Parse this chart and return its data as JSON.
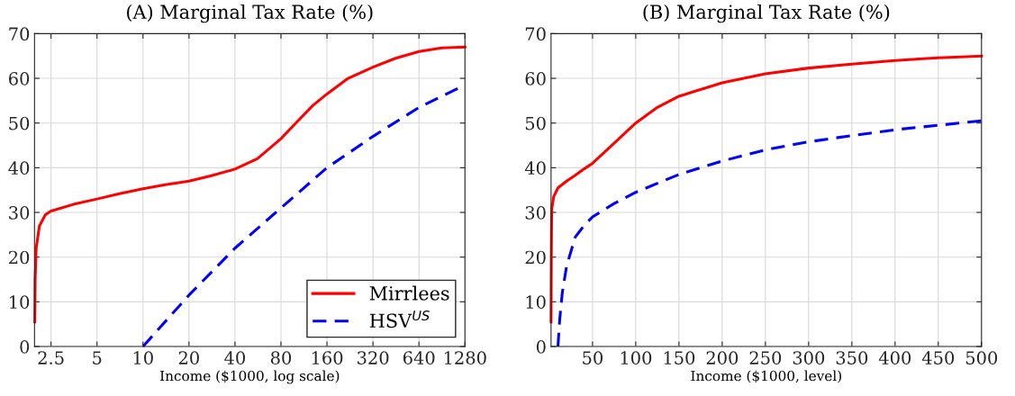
{
  "chart_data": [
    {
      "type": "line",
      "title": "(A) Marginal Tax Rate (%)",
      "xlabel": "Income ($1000, log scale)",
      "log": "x",
      "xlim": [
        1.95,
        1280
      ],
      "xticks": [
        2.5,
        5,
        10,
        20,
        40,
        80,
        160,
        320,
        640,
        1280
      ],
      "ylim": [
        0,
        70
      ],
      "yticks": [
        0,
        10,
        20,
        30,
        40,
        50,
        60,
        70
      ],
      "grid": true,
      "legend": "bottom right",
      "series": [
        {
          "name": "Mirrlees",
          "color": "#ff0000",
          "line_style": "solid",
          "x": [
            1.96,
            1.97,
            2.0,
            2.1,
            2.3,
            2.5,
            3.5,
            5,
            7,
            10,
            14,
            20,
            28,
            40,
            56,
            80,
            100,
            130,
            160,
            220,
            320,
            450,
            640,
            900,
            1280
          ],
          "values": [
            5.5,
            15,
            22,
            27,
            29.5,
            30.3,
            31.8,
            33,
            34.2,
            35.3,
            36.2,
            37,
            38.2,
            39.7,
            42,
            46.5,
            50,
            54,
            56.5,
            60,
            62.5,
            64.5,
            66,
            66.8,
            67
          ]
        },
        {
          "name": "HSV$^{US}$",
          "color": "#0000ff",
          "line_style": "dashed",
          "x": [
            10,
            20,
            40,
            80,
            160,
            320,
            640,
            1280
          ],
          "values": [
            0,
            11.5,
            22,
            31,
            40,
            47,
            53.5,
            58.5
          ]
        }
      ]
    },
    {
      "type": "line",
      "title": "(B) Marginal Tax Rate (%)",
      "xlabel": "Income ($1000, level)",
      "xlim": [
        2,
        500
      ],
      "xticks": [
        50,
        100,
        150,
        200,
        250,
        300,
        350,
        400,
        450,
        500
      ],
      "ylim": [
        0,
        70
      ],
      "yticks": [
        0,
        10,
        20,
        30,
        40,
        50,
        60,
        70
      ],
      "grid": true,
      "series": [
        {
          "color": "#ff0000",
          "line_style": "solid",
          "x": [
            2,
            2.3,
            2.6,
            3,
            5,
            10,
            20,
            30,
            40,
            50,
            75,
            100,
            125,
            150,
            200,
            250,
            300,
            350,
            400,
            450,
            500
          ],
          "values": [
            5.5,
            20,
            28,
            31,
            33.5,
            35.5,
            37,
            38.3,
            39.7,
            41,
            45.5,
            50,
            53.5,
            56,
            59,
            61,
            62.3,
            63.2,
            64,
            64.6,
            65
          ]
        },
        {
          "color": "#0000ff",
          "line_style": "dashed",
          "x": [
            10,
            12,
            15,
            20,
            30,
            40,
            50,
            75,
            100,
            150,
            200,
            250,
            300,
            350,
            400,
            450,
            500
          ],
          "values": [
            0,
            6,
            12,
            18,
            24.5,
            27,
            29,
            32,
            34.5,
            38.5,
            41.5,
            44,
            45.8,
            47.2,
            48.5,
            49.5,
            50.5
          ]
        }
      ]
    }
  ]
}
